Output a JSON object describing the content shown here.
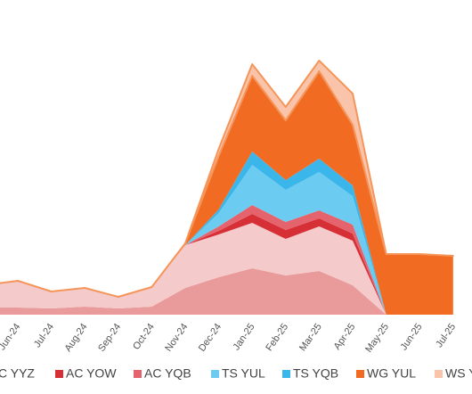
{
  "chart_data": {
    "type": "stacked-area",
    "categories": [
      null,
      "Jun-24",
      "Jul-24",
      "Aug-24",
      "Sep-24",
      "Oct-24",
      "Nov-24",
      "Dec-24",
      "Jan-25",
      "Feb-25",
      "Mar-25",
      "Apr-25",
      "May-25",
      "Jun-25",
      "Jul-25"
    ],
    "ylim": [
      0,
      300
    ],
    "series": [
      {
        "name": null,
        "color": "#e99a9b",
        "values": [
          8,
          8,
          7,
          9,
          7,
          9,
          30,
          42,
          52,
          44,
          49,
          33,
          0,
          0,
          0
        ]
      },
      {
        "name": "C YYZ",
        "color": "#f5cacb",
        "values": [
          25,
          30,
          19,
          21,
          13,
          22,
          48,
          48,
          51,
          41,
          50,
          50,
          0,
          0,
          0
        ]
      },
      {
        "name": "AC YOW",
        "color": "#d62f35",
        "values": [
          0,
          0,
          0,
          0,
          0,
          0,
          0,
          4,
          10,
          10,
          9,
          8,
          0,
          0,
          0
        ]
      },
      {
        "name": "AC YQB",
        "color": "#e5636c",
        "values": [
          0,
          0,
          0,
          0,
          0,
          0,
          0,
          5,
          10,
          9,
          9,
          10,
          0,
          0,
          0
        ]
      },
      {
        "name": "TS YUL",
        "color": "#6ccbf0",
        "values": [
          0,
          0,
          0,
          0,
          0,
          0,
          0,
          15,
          45,
          36,
          43,
          32,
          0,
          0,
          0
        ]
      },
      {
        "name": "TS YQB",
        "color": "#3bb6ea",
        "values": [
          0,
          0,
          0,
          0,
          0,
          0,
          0,
          4,
          15,
          11,
          15,
          12,
          0,
          0,
          0
        ]
      },
      {
        "name": "WG YUL",
        "color": "#f26b23",
        "values": [
          0,
          0,
          0,
          0,
          0,
          0,
          2,
          60,
          85,
          67,
          98,
          68,
          68,
          68,
          66
        ]
      },
      {
        "name": "WS Y",
        "color": "#f9c4a9",
        "values": [
          0,
          0,
          0,
          0,
          0,
          0,
          0,
          8,
          13,
          15,
          12,
          35,
          0,
          0,
          0
        ]
      }
    ]
  }
}
